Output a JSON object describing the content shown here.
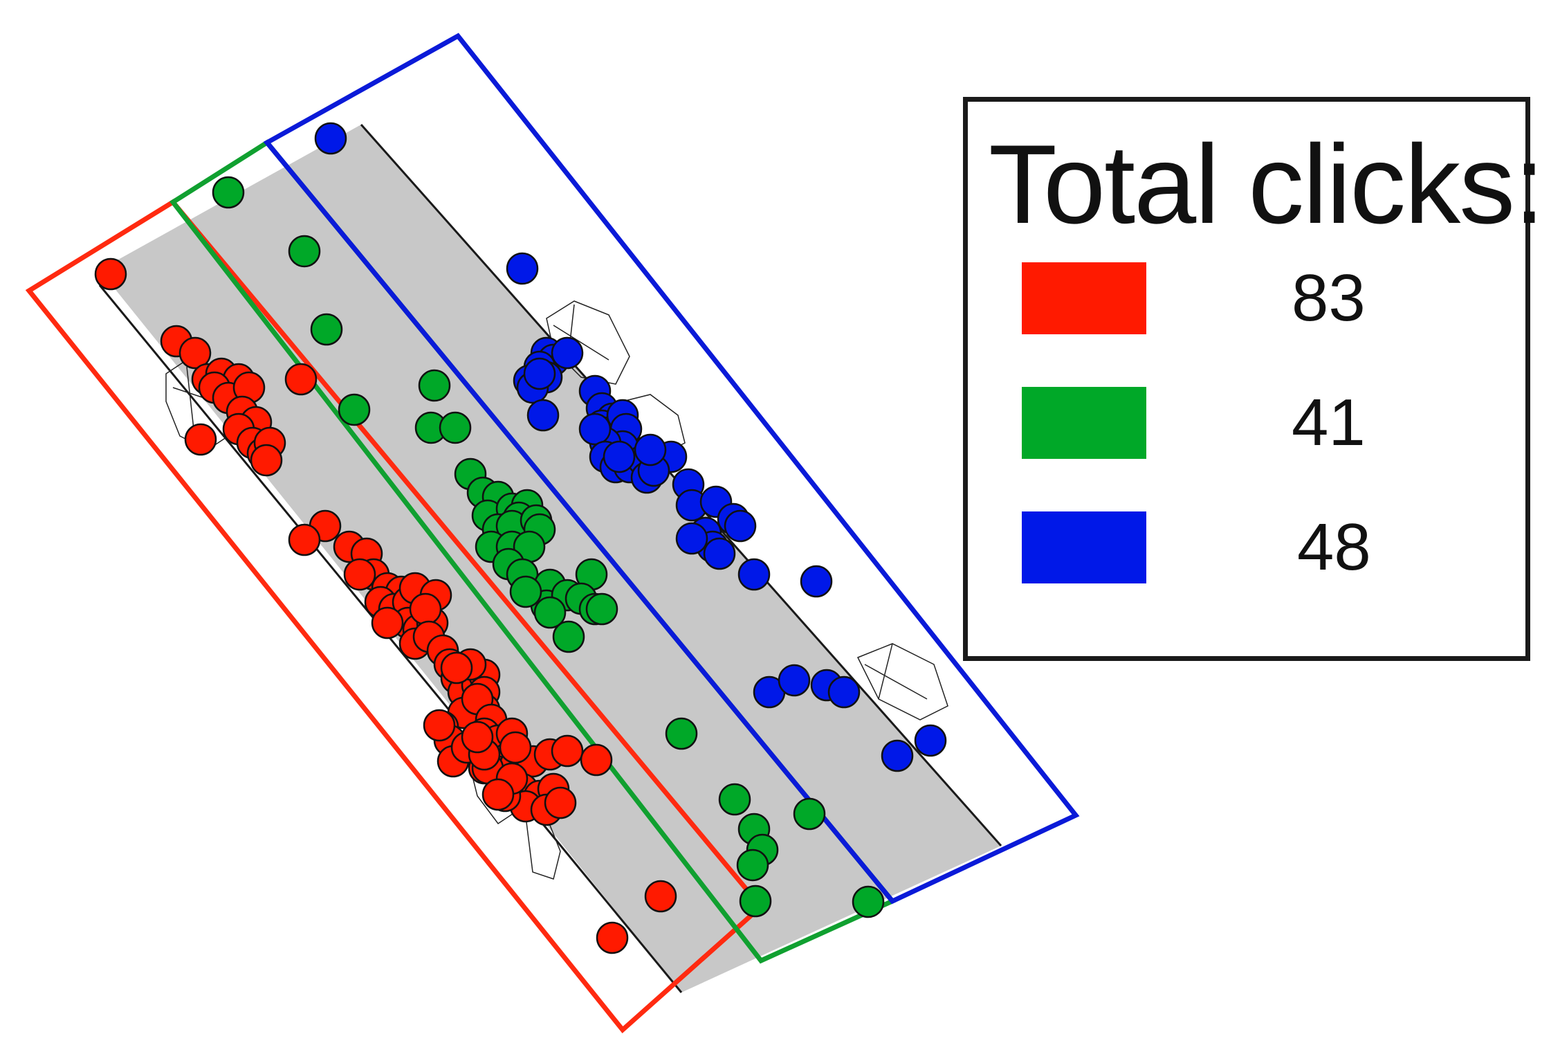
{
  "legend": {
    "title": "Total clicks:",
    "items": [
      {
        "key": "red",
        "color": "#ff1a00",
        "value": "83"
      },
      {
        "key": "green",
        "color": "#00a828",
        "value": "41"
      },
      {
        "key": "blue",
        "color": "#0018e8",
        "value": "48"
      }
    ]
  },
  "colors": {
    "road": "#c8c8c8",
    "edge": "#1a1a1a",
    "red_zone": "#ff2a10",
    "green_zone": "#10a030",
    "blue_zone": "#0a1ad8",
    "red_dot": "#ff1a00",
    "green_dot": "#00a828",
    "blue_dot": "#0018e8"
  }
}
